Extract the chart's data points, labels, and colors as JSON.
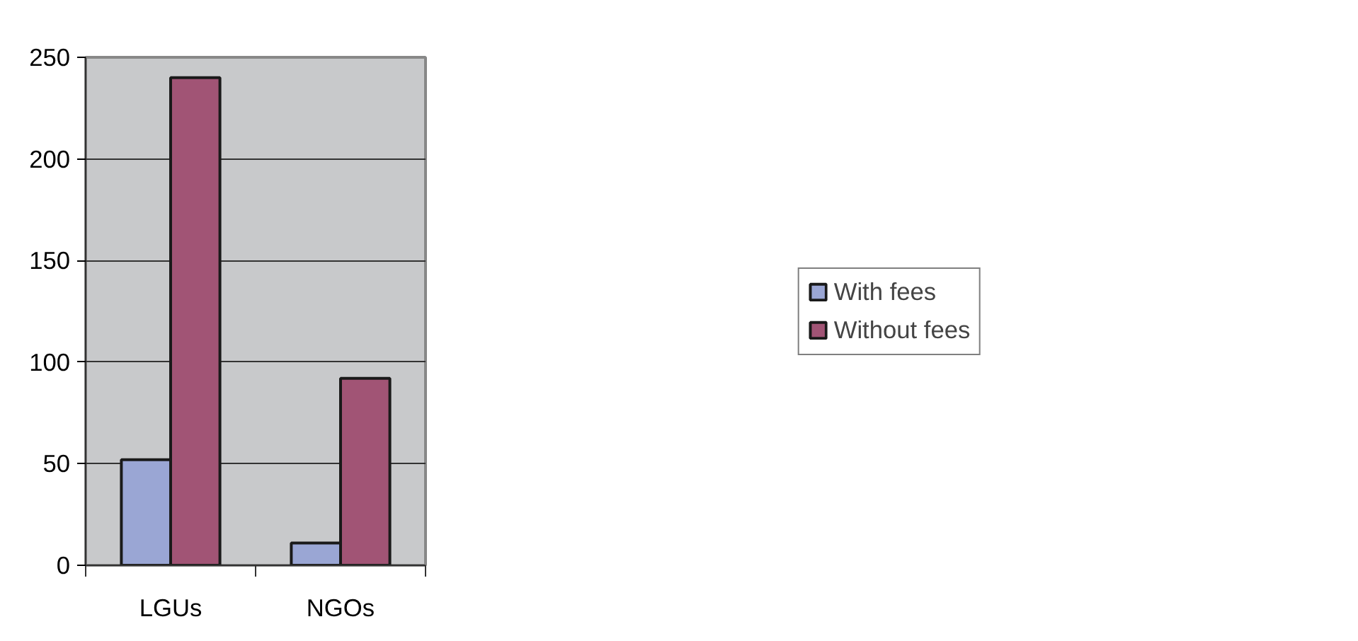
{
  "chart_data": {
    "type": "bar",
    "categories": [
      "LGUs",
      "NGOs"
    ],
    "series": [
      {
        "name": "With fees",
        "color": "#9aa6d4",
        "values": [
          52,
          11
        ]
      },
      {
        "name": "Without fees",
        "color": "#a15475",
        "values": [
          240,
          92
        ]
      }
    ],
    "ylim": [
      0,
      250
    ],
    "yticks": [
      0,
      50,
      100,
      150,
      200,
      250
    ],
    "grid": "y",
    "legend": "right"
  }
}
